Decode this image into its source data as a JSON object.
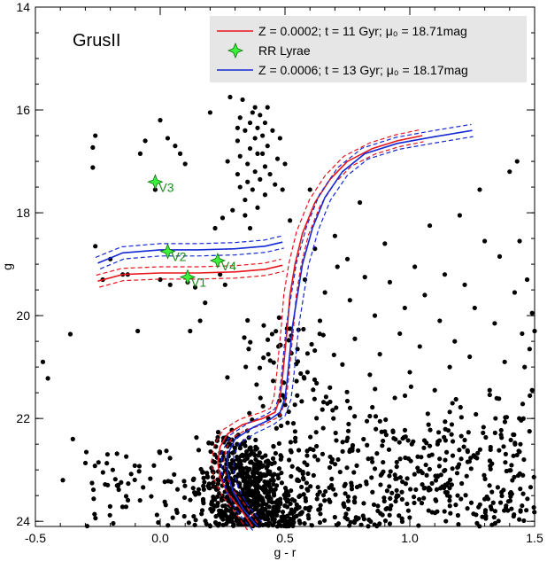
{
  "chart_data": {
    "type": "scatter",
    "title": "GrusII",
    "xlabel": "g - r",
    "ylabel": "g",
    "xlim": [
      -0.5,
      1.5
    ],
    "ylim": [
      24.1,
      14.0
    ],
    "y_inverted": true,
    "x_ticks": [
      -0.5,
      0.0,
      0.5,
      1.0,
      1.5
    ],
    "x_tick_labels": [
      "-0.5",
      "0.0",
      "0.5",
      "1.0",
      "1.5"
    ],
    "y_ticks": [
      14,
      16,
      18,
      20,
      22,
      24
    ],
    "y_tick_labels": [
      "14",
      "16",
      "18",
      "20",
      "22",
      "24"
    ],
    "grid": false,
    "legend_position": "top-right",
    "legend": [
      {
        "label": "Z = 0.0002; t = 11 Gyr; μ₀ = 18.71mag",
        "kind": "line",
        "color": "#e8141c"
      },
      {
        "label": "RR Lyrae",
        "kind": "star",
        "color": "#3cf03c"
      },
      {
        "label": "Z = 0.0006; t = 13 Gyr; μ₀ = 18.17mag",
        "kind": "line",
        "color": "#1428d4"
      }
    ],
    "colors": {
      "stars": "#000000",
      "rr_lyrae_fill": "#3cf03c",
      "rr_lyrae_label": "#1a8c1a",
      "isochrone_1": "#e8141c",
      "isochrone_2": "#1428d4",
      "legend_bg": "#e6e6e6"
    },
    "rr_lyrae": [
      {
        "name": "V1",
        "x": 0.11,
        "y": 19.25
      },
      {
        "name": "V2",
        "x": 0.03,
        "y": 18.75
      },
      {
        "name": "V3",
        "x": -0.02,
        "y": 17.4
      },
      {
        "name": "V4",
        "x": 0.23,
        "y": 18.93
      }
    ],
    "isochrones": [
      {
        "name": "Z = 0.0002; t = 11 Gyr; μ₀ = 18.71mag",
        "color": "#e8141c",
        "width_mag": 0.12,
        "segments": [
          [
            [
              -0.25,
              19.33
            ],
            [
              -0.15,
              19.2
            ],
            [
              0.0,
              19.17
            ],
            [
              0.15,
              19.17
            ],
            [
              0.3,
              19.15
            ],
            [
              0.42,
              19.1
            ],
            [
              0.49,
              19.02
            ]
          ],
          [
            [
              0.37,
              24.1
            ],
            [
              0.32,
              23.75
            ],
            [
              0.27,
              23.45
            ],
            [
              0.24,
              23.15
            ],
            [
              0.23,
              22.85
            ],
            [
              0.24,
              22.55
            ],
            [
              0.27,
              22.3
            ],
            [
              0.33,
              22.12
            ],
            [
              0.41,
              22.0
            ],
            [
              0.46,
              21.88
            ],
            [
              0.48,
              21.6
            ],
            [
              0.49,
              21.2
            ],
            [
              0.5,
              20.7
            ],
            [
              0.51,
              20.2
            ],
            [
              0.52,
              19.6
            ],
            [
              0.54,
              19.0
            ],
            [
              0.57,
              18.4
            ],
            [
              0.62,
              17.8
            ],
            [
              0.68,
              17.35
            ],
            [
              0.75,
              17.0
            ],
            [
              0.85,
              16.75
            ],
            [
              0.95,
              16.6
            ],
            [
              1.05,
              16.5
            ]
          ]
        ]
      },
      {
        "name": "Z = 0.0006; t = 13 Gyr; μ₀ = 18.17mag",
        "color": "#1428d4",
        "width_mag": 0.12,
        "segments": [
          [
            [
              -0.25,
              18.98
            ],
            [
              -0.15,
              18.78
            ],
            [
              0.0,
              18.72
            ],
            [
              0.15,
              18.72
            ],
            [
              0.3,
              18.7
            ],
            [
              0.42,
              18.65
            ],
            [
              0.49,
              18.57
            ]
          ],
          [
            [
              0.39,
              24.1
            ],
            [
              0.33,
              23.75
            ],
            [
              0.29,
              23.4
            ],
            [
              0.27,
              23.05
            ],
            [
              0.27,
              22.7
            ],
            [
              0.3,
              22.4
            ],
            [
              0.37,
              22.18
            ],
            [
              0.44,
              22.02
            ],
            [
              0.48,
              21.88
            ],
            [
              0.5,
              21.6
            ],
            [
              0.51,
              21.2
            ],
            [
              0.52,
              20.7
            ],
            [
              0.53,
              20.2
            ],
            [
              0.55,
              19.6
            ],
            [
              0.57,
              19.0
            ],
            [
              0.61,
              18.3
            ],
            [
              0.66,
              17.7
            ],
            [
              0.73,
              17.2
            ],
            [
              0.82,
              16.85
            ],
            [
              0.95,
              16.65
            ],
            [
              1.1,
              16.52
            ],
            [
              1.25,
              16.4
            ]
          ]
        ]
      }
    ],
    "stars": [
      [
        -0.47,
        20.9
      ],
      [
        -0.45,
        21.22
      ],
      [
        -0.39,
        23.2
      ],
      [
        -0.36,
        20.36
      ],
      [
        -0.35,
        22.4
      ],
      [
        -0.27,
        16.73
      ],
      [
        -0.27,
        17.12
      ],
      [
        -0.26,
        16.5
      ],
      [
        -0.26,
        18.65
      ],
      [
        -0.23,
        19.3
      ],
      [
        -0.2,
        18.9
      ],
      [
        -0.19,
        23.0
      ],
      [
        -0.17,
        23.3
      ],
      [
        -0.15,
        19.2
      ],
      [
        -0.13,
        19.2
      ],
      [
        -0.09,
        20.3
      ],
      [
        -0.08,
        16.85
      ],
      [
        -0.06,
        16.6
      ],
      [
        -0.02,
        17.55
      ],
      [
        0.0,
        16.2
      ],
      [
        0.0,
        19.3
      ],
      [
        0.03,
        16.55
      ],
      [
        0.04,
        19.4
      ],
      [
        0.06,
        16.7
      ],
      [
        0.08,
        16.85
      ],
      [
        0.1,
        17.05
      ],
      [
        0.11,
        19.35
      ],
      [
        0.12,
        20.3
      ],
      [
        0.14,
        19.45
      ],
      [
        0.16,
        20.1
      ],
      [
        0.18,
        19.75
      ],
      [
        0.2,
        16.05
      ],
      [
        0.22,
        18.3
      ],
      [
        0.24,
        19.2
      ],
      [
        0.25,
        18.1
      ],
      [
        0.26,
        19.4
      ],
      [
        0.27,
        17.0
      ],
      [
        0.28,
        15.75
      ],
      [
        0.29,
        17.95
      ],
      [
        0.31,
        16.35
      ],
      [
        0.31,
        16.6
      ],
      [
        0.31,
        17.25
      ],
      [
        0.32,
        16.15
      ],
      [
        0.32,
        16.9
      ],
      [
        0.32,
        17.5
      ],
      [
        0.33,
        15.8
      ],
      [
        0.34,
        16.4
      ],
      [
        0.34,
        17.75
      ],
      [
        0.34,
        18.05
      ],
      [
        0.35,
        17.05
      ],
      [
        0.35,
        17.4
      ],
      [
        0.36,
        16.25
      ],
      [
        0.36,
        16.75
      ],
      [
        0.36,
        18.3
      ],
      [
        0.37,
        16.05
      ],
      [
        0.37,
        17.55
      ],
      [
        0.38,
        15.95
      ],
      [
        0.38,
        16.55
      ],
      [
        0.38,
        17.2
      ],
      [
        0.39,
        16.35
      ],
      [
        0.39,
        16.85
      ],
      [
        0.39,
        17.9
      ],
      [
        0.4,
        16.1
      ],
      [
        0.4,
        17.35
      ],
      [
        0.41,
        16.5
      ],
      [
        0.41,
        16.85
      ],
      [
        0.42,
        16.25
      ],
      [
        0.42,
        17.1
      ],
      [
        0.42,
        17.65
      ],
      [
        0.43,
        15.95
      ],
      [
        0.43,
        16.7
      ],
      [
        0.44,
        17.25
      ],
      [
        0.45,
        16.4
      ],
      [
        0.46,
        17.45
      ],
      [
        0.47,
        16.95
      ],
      [
        0.48,
        16.55
      ],
      [
        0.49,
        17.55
      ],
      [
        0.5,
        17.05
      ],
      [
        0.52,
        18.15
      ],
      [
        0.55,
        20.65
      ],
      [
        0.58,
        19.3
      ],
      [
        0.59,
        21.1
      ],
      [
        0.6,
        17.55
      ],
      [
        0.62,
        18.7
      ],
      [
        0.64,
        20.1
      ],
      [
        0.66,
        19.55
      ],
      [
        0.68,
        21.4
      ],
      [
        0.7,
        18.45
      ],
      [
        0.71,
        19.05
      ],
      [
        0.73,
        20.95
      ],
      [
        0.75,
        18.9
      ],
      [
        0.76,
        19.7
      ],
      [
        0.78,
        20.45
      ],
      [
        0.8,
        17.8
      ],
      [
        0.82,
        19.25
      ],
      [
        0.84,
        21.15
      ],
      [
        0.86,
        20.0
      ],
      [
        0.88,
        20.75
      ],
      [
        0.9,
        18.6
      ],
      [
        0.92,
        19.35
      ],
      [
        0.94,
        21.6
      ],
      [
        0.96,
        20.35
      ],
      [
        0.98,
        19.85
      ],
      [
        1.0,
        21.1
      ],
      [
        1.02,
        19.05
      ],
      [
        1.04,
        20.6
      ],
      [
        1.06,
        19.6
      ],
      [
        1.08,
        18.25
      ],
      [
        1.1,
        21.45
      ],
      [
        1.12,
        20.1
      ],
      [
        1.14,
        19.2
      ],
      [
        1.16,
        21.0
      ],
      [
        1.18,
        20.5
      ],
      [
        1.2,
        18.05
      ],
      [
        1.22,
        19.4
      ],
      [
        1.24,
        20.8
      ],
      [
        1.26,
        19.85
      ],
      [
        1.28,
        17.55
      ],
      [
        1.3,
        18.55
      ],
      [
        1.32,
        21.45
      ],
      [
        1.34,
        20.15
      ],
      [
        1.36,
        18.85
      ],
      [
        1.38,
        20.9
      ],
      [
        1.4,
        17.2
      ],
      [
        1.42,
        19.55
      ],
      [
        1.43,
        17.0
      ],
      [
        1.44,
        18.55
      ],
      [
        1.45,
        20.35
      ],
      [
        1.46,
        21.0
      ],
      [
        1.47,
        19.3
      ],
      [
        1.48,
        20.65
      ],
      [
        1.49,
        19.95
      ],
      [
        1.49,
        21.45
      ],
      [
        1.5,
        20.3
      ]
    ]
  }
}
